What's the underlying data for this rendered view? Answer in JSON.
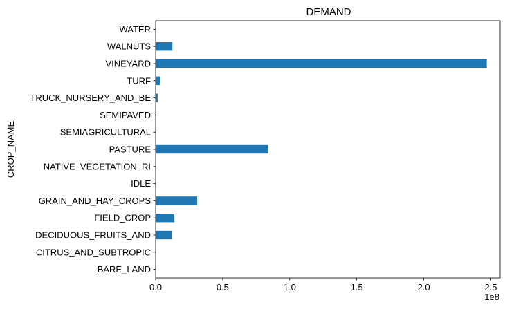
{
  "chart_data": {
    "type": "bar",
    "orientation": "horizontal",
    "title": "DEMAND",
    "xlabel": "",
    "ylabel": "CROP_NAME",
    "x_offset_label": "1e8",
    "x_scale": 100000000,
    "xlim": [
      0,
      257000000
    ],
    "xticks": [
      0,
      50000000,
      100000000,
      150000000,
      200000000,
      250000000
    ],
    "xtick_labels": [
      "0.0",
      "0.5",
      "1.0",
      "1.5",
      "2.0",
      "2.5"
    ],
    "categories": [
      "BARE_LAND",
      "CITRUS_AND_SUBTROPIC",
      "DECIDUOUS_FRUITS_AND",
      "FIELD_CROP",
      "GRAIN_AND_HAY_CROPS",
      "IDLE",
      "NATIVE_VEGETATION_RI",
      "PASTURE",
      "SEMIAGRICULTURAL",
      "SEMIPAVED",
      "TRUCK_NURSERY_AND_BE",
      "TURF",
      "VINEYARD",
      "WALNUTS",
      "WATER"
    ],
    "values": [
      0,
      0,
      12000000,
      14000000,
      31000000,
      0,
      0,
      84000000,
      0,
      0,
      1500000,
      3200000,
      247000000,
      12500000,
      0
    ],
    "bar_color": "#1f77b4",
    "grid": false,
    "legend": "none"
  }
}
